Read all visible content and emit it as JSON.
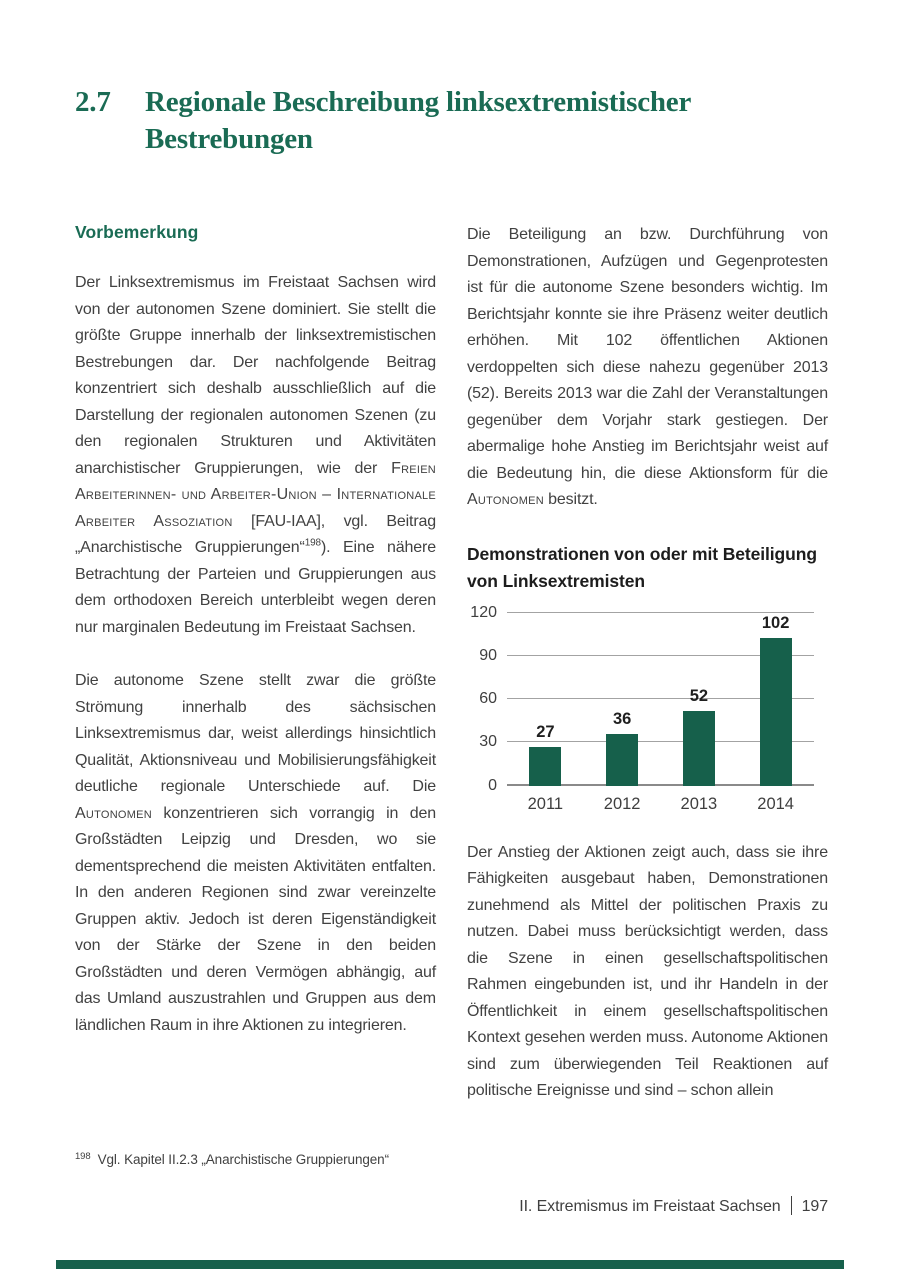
{
  "page": {
    "section_number": "2.7",
    "title_line1": "Regionale Beschreibung linksextremistischer",
    "title_line2": "Bestrebungen"
  },
  "colors": {
    "heading_green": "#1a6b54",
    "bar_green": "#16604b",
    "body_text": "#414141",
    "grid_gray": "#a3a3a3"
  },
  "left_column": {
    "heading": "Vorbemerkung",
    "para1": {
      "part1": "Der Linksextremismus im Freistaat Sachsen wird von der autonomen Szene dominiert. Sie stellt die größte Gruppe innerhalb der linksextremistischen Bestrebungen dar. Der nachfolgende Beitrag konzentriert sich deshalb ausschließlich auf die Darstellung der regionalen autonomen Szenen (zu den regionalen Strukturen und Aktivitäten anarchistischer Gruppierungen, wie der ",
      "smallcaps1": "Freien Arbeiterinnen- und Arbeiter-Union – Internationale Arbeiter Assoziation",
      "part2": " [FAU-IAA], vgl. Beitrag „Anarchistische Gruppierungen“",
      "footnote_ref": "198",
      "part3": "). Eine nähere Betrachtung der Parteien und Gruppierungen aus dem orthodoxen Bereich unterbleibt wegen deren nur marginalen Bedeutung im Freistaat Sachsen."
    },
    "para2": {
      "part1": "Die autonome Szene stellt zwar die größte Strömung innerhalb des sächsischen Linksextremismus dar, weist allerdings hinsichtlich Qualität, Aktionsniveau und Mobilisierungsfähigkeit deutliche regionale Unterschiede auf. Die ",
      "smallcaps1": "Autonomen",
      "part2": " konzentrieren sich vorrangig in den Großstädten Leipzig und Dresden, wo sie dementsprechend die meisten Aktivitäten entfalten. In den anderen Regionen sind zwar vereinzelte Gruppen aktiv. Jedoch ist deren Eigenständigkeit von der Stärke der Szene in den beiden Großstädten und deren Vermögen abhängig, auf das Umland auszustrahlen und Gruppen aus dem ländlichen Raum in ihre Aktionen zu integrieren."
    }
  },
  "right_column": {
    "para1": {
      "part1": "Die Beteiligung an bzw. Durchführung von Demonstrationen, Aufzügen und Gegenprotesten ist für die autonome Szene besonders wichtig. Im Berichtsjahr konnte sie ihre Präsenz weiter deutlich erhöhen. Mit 102 öffentlichen Aktionen verdoppelten sich diese nahezu gegenüber 2013 (52). Bereits 2013 war die Zahl der Veranstaltungen gegenüber dem Vorjahr stark gestiegen. Der abermalige hohe Anstieg im Berichtsjahr weist auf die Bedeutung hin, die diese Aktionsform für die ",
      "smallcaps1": "Autonomen",
      "part2": " besitzt."
    },
    "para2": "Der Anstieg der Aktionen zeigt auch, dass sie ihre Fähigkeiten ausgebaut haben, Demonstrationen zunehmend als Mittel der politischen Praxis zu nutzen. Dabei muss berücksichtigt werden, dass die Szene in einen gesellschaftspolitischen Rahmen eingebunden ist, und ihr Handeln in der Öffentlichkeit in einem gesellschaftspolitischen Kontext gesehen werden muss. Autonome Aktionen sind zum überwiegenden Teil Reaktionen auf politische Ereignisse und sind – schon allein"
  },
  "chart_data": {
    "type": "bar",
    "title": "Demonstrationen von oder mit Beteiligung von Linksextremisten",
    "categories": [
      "2011",
      "2012",
      "2013",
      "2014"
    ],
    "values": [
      27,
      36,
      52,
      102
    ],
    "yticks": [
      0,
      30,
      60,
      90,
      120
    ],
    "ylim": [
      0,
      120
    ],
    "bar_color": "#16604b",
    "grid": true,
    "legend": false,
    "xlabel": "",
    "ylabel": ""
  },
  "footnote": {
    "ref": "198",
    "text": "Vgl. Kapitel II.2.3 „Anarchistische Gruppierungen“"
  },
  "footer": {
    "section": "II. Extremismus im Freistaat Sachsen",
    "page_number": "197"
  }
}
